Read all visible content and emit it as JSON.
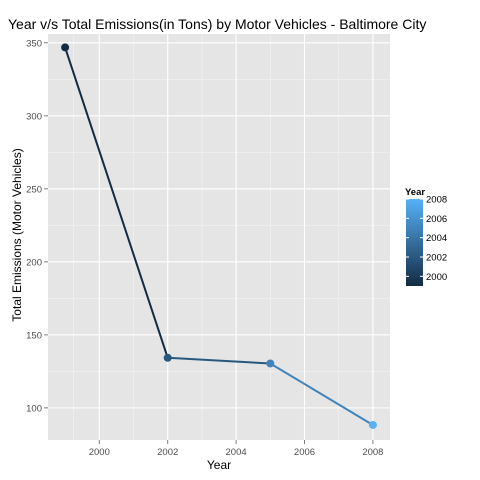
{
  "chart_data": {
    "type": "line",
    "title": "Year v/s Total Emissions(in Tons) by Motor Vehicles - Baltimore City",
    "xlabel": "Year",
    "ylabel": "Total Emissions (Motor Vehicles)",
    "xlim": [
      1998.5,
      2008.5
    ],
    "ylim": [
      78,
      356
    ],
    "x_ticks": [
      2000,
      2002,
      2004,
      2006,
      2008
    ],
    "x_tick_labels": [
      "2000",
      "2002",
      "2004",
      "2006",
      "2008"
    ],
    "y_ticks": [
      100,
      150,
      200,
      250,
      300,
      350
    ],
    "y_tick_labels": [
      "100",
      "150",
      "200",
      "250",
      "300",
      "350"
    ],
    "grid": true,
    "series": [
      {
        "x": [
          1999,
          2002,
          2005,
          2008
        ],
        "values": [
          346.8,
          134.3,
          130.4,
          88.3
        ]
      }
    ],
    "color_scale": {
      "title": "Year",
      "low_color": "#132B43",
      "high_color": "#56B1F7",
      "range": [
        1999,
        2008
      ],
      "breaks": [
        2008,
        2006,
        2004,
        2002,
        2000
      ],
      "break_labels": [
        "2008",
        "2006",
        "2004",
        "2002",
        "2000"
      ],
      "placement": "right"
    },
    "colors": {
      "panel_background": "#e5e5e5",
      "grid_major": "#ffffff",
      "grid_minor": "#f2f2f2"
    }
  }
}
